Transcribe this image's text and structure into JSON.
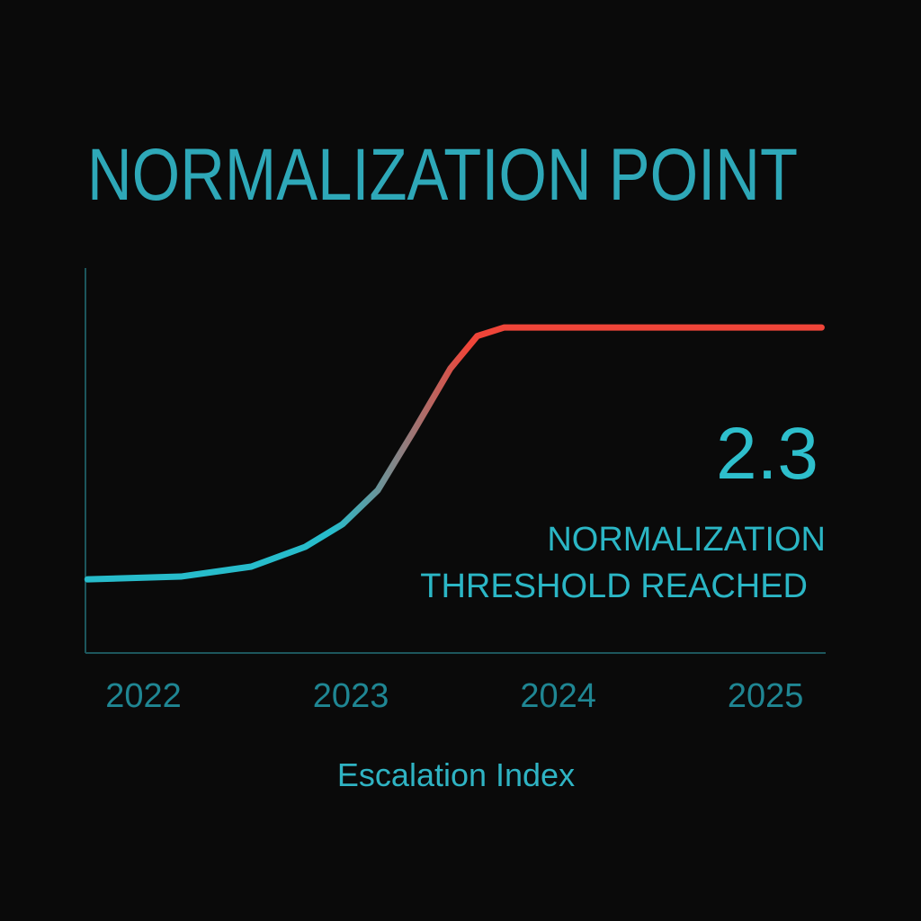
{
  "chart_data": {
    "type": "line",
    "title": "NORMALIZATION POINT",
    "x_label": "Escalation Index",
    "x": [
      2021.73,
      2022.18,
      2022.52,
      2022.78,
      2022.96,
      2023.13,
      2023.3,
      2023.48,
      2023.61,
      2023.74,
      2023.91,
      2025.27
    ],
    "series": [
      {
        "values": [
          0.52,
          0.54,
          0.61,
          0.75,
          0.91,
          1.15,
          1.56,
          2.01,
          2.24,
          2.3,
          2.3,
          2.3
        ],
        "gradient": [
          "#27bccb",
          "#ef4539"
        ]
      }
    ],
    "xlim": [
      2021.72,
      2025.29
    ],
    "xticks": [
      2022,
      2023,
      2024,
      2025
    ],
    "ylim": [
      0,
      2.72
    ],
    "annotation": {
      "value": 2.3,
      "lines": [
        "NORMALIZATION",
        "THRESHOLD REACHED"
      ]
    }
  }
}
